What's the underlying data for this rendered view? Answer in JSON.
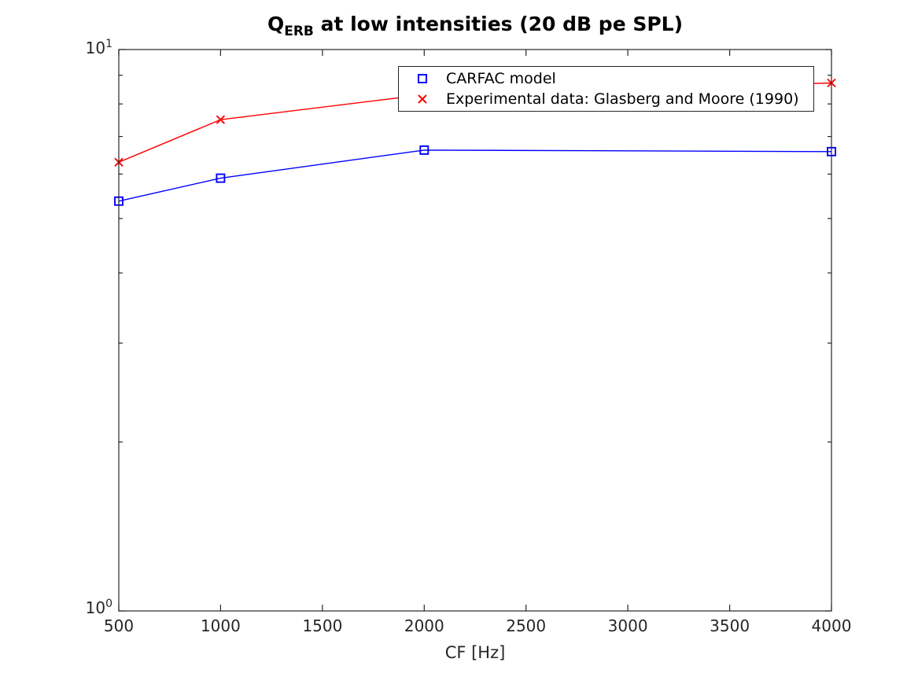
{
  "figure": {
    "title": {
      "q": "Q",
      "sub": "ERB",
      "rest": " at low intensities (20 dB pe SPL)"
    },
    "xlabel": "CF [Hz]",
    "background": "#ffffff",
    "axis_color": "#262626"
  },
  "axis": {
    "y_ticks": [
      {
        "base": "10",
        "exp": "1"
      },
      {
        "base": "10",
        "exp": "0"
      }
    ]
  },
  "legend": {
    "items": [
      {
        "label": "CARFAC model",
        "marker": "square",
        "color": "#0000ff"
      },
      {
        "label": "Experimental data: Glasberg and Moore (1990)",
        "marker": "x",
        "color": "#ff0000"
      }
    ]
  },
  "chart_data": {
    "type": "line",
    "title": "Q_ERB at low intensities (20 dB pe SPL)",
    "xlabel": "CF [Hz]",
    "ylabel": "",
    "x": [
      500,
      1000,
      2000,
      4000
    ],
    "series": [
      {
        "name": "CARFAC model",
        "color": "#0000ff",
        "marker": "square",
        "values": [
          5.37,
          5.9,
          6.62,
          6.58
        ]
      },
      {
        "name": "Experimental data: Glasberg and Moore (1990)",
        "color": "#ff0000",
        "marker": "x",
        "values": [
          6.3,
          7.5,
          8.31,
          8.72
        ]
      }
    ],
    "xlim": [
      500,
      4000
    ],
    "ylim": [
      1,
      10
    ],
    "yscale": "log",
    "xscale": "linear",
    "x_ticks": [
      500,
      1000,
      1500,
      2000,
      2500,
      3000,
      3500,
      4000
    ],
    "y_major_tick_labels": [
      "10^0",
      "10^1"
    ],
    "y_minor_ticks": [
      2,
      3,
      4,
      5,
      6,
      7,
      8,
      9
    ],
    "grid": false,
    "legend_position": "upper right inside",
    "note": "red series data point at x=2000 is hidden behind the legend box"
  }
}
